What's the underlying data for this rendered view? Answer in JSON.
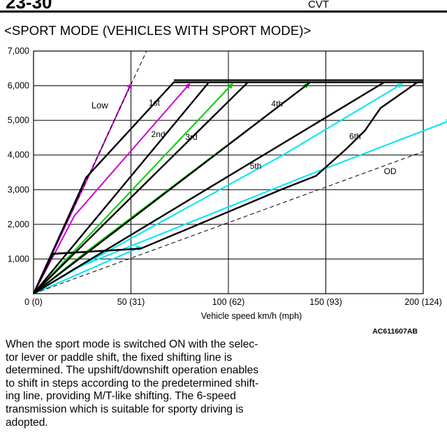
{
  "header": {
    "page_number": "23-30",
    "section": "CVT"
  },
  "heading": "<SPORT MODE (VEHICLES WITH SPORT MODE)>",
  "chart_data": {
    "type": "line",
    "title": "",
    "xlabel": "Vehicle speed  km/h (mph)",
    "ylabel": "",
    "xlim": [
      0,
      200
    ],
    "ylim": [
      0,
      7000
    ],
    "x_ticks": [
      "0 (0)",
      "50 (31)",
      "100 (62)",
      "150 (93)",
      "200 (124)"
    ],
    "y_ticks": [
      "7,000",
      "6,000",
      "5,000",
      "4,000",
      "3,000",
      "2,000",
      "1,000"
    ],
    "grid": true,
    "figure_code": "AC611607AB",
    "annotations": [
      "Low",
      "1st",
      "2nd",
      "3rd",
      "4th",
      "5th",
      "6th",
      "OD"
    ],
    "series": [
      {
        "name": "Low",
        "style": "dashed",
        "color": "#000000",
        "x": [
          0,
          58
        ],
        "y": [
          0,
          7000
        ]
      },
      {
        "name": "OD",
        "style": "dashed",
        "color": "#000000",
        "x": [
          0,
          200
        ],
        "y": [
          0,
          4100
        ]
      },
      {
        "name": "1st",
        "style": "solid",
        "color": "#000000",
        "x": [
          0,
          27,
          72,
          200
        ],
        "y": [
          0,
          3350,
          6100,
          6100
        ]
      },
      {
        "name": "2nd",
        "style": "solid",
        "color": "#000000",
        "x": [
          0,
          90
        ],
        "y": [
          0,
          6100
        ]
      },
      {
        "name": "3rd",
        "style": "solid",
        "color": "#000000",
        "x": [
          0,
          110
        ],
        "y": [
          0,
          6100
        ]
      },
      {
        "name": "4th",
        "style": "solid",
        "color": "#000000",
        "x": [
          0,
          142
        ],
        "y": [
          0,
          6100
        ]
      },
      {
        "name": "5th",
        "style": "solid",
        "color": "#000000",
        "x": [
          0,
          180
        ],
        "y": [
          0,
          6100
        ]
      },
      {
        "name": "6th",
        "style": "solid",
        "color": "#000000",
        "x": [
          0,
          10,
          55,
          127,
          145,
          160,
          170,
          178,
          197,
          200
        ],
        "y": [
          0,
          1150,
          1300,
          3000,
          3400,
          4150,
          4700,
          5350,
          6100,
          6100
        ]
      },
      {
        "name": "low-flat",
        "style": "solid",
        "color": "#000000",
        "x": [
          10,
          55
        ],
        "y": [
          1150,
          1300
        ]
      }
    ],
    "arrows": [
      {
        "color": "#cc00cc",
        "x": [
          0,
          28,
          50
        ],
        "y": [
          0,
          3350,
          6050
        ]
      },
      {
        "color": "#cc00cc",
        "x": [
          0,
          21,
          80
        ],
        "y": [
          0,
          2250,
          6050
        ]
      },
      {
        "color": "#00cc00",
        "x": [
          0,
          28,
          102
        ],
        "y": [
          0,
          1650,
          6050
        ]
      },
      {
        "color": "#00cc00",
        "x": [
          0,
          28,
          141
        ],
        "y": [
          0,
          1250,
          6050
        ]
      },
      {
        "color": "#00e5f0",
        "x": [
          0,
          25,
          128,
          189
        ],
        "y": [
          0,
          820,
          4000,
          6050
        ]
      },
      {
        "color": "#00e5f0",
        "x": [
          0,
          55
        ],
        "y": [
          0,
          1350
        ]
      },
      {
        "color": "#00e5f0",
        "x": [
          20,
          140,
          214
        ],
        "y": [
          700,
          3400,
          5000
        ]
      }
    ]
  },
  "body_lines": [
    "When the sport mode is switched ON with the selec-",
    "tor lever or paddle shift, the fixed shifting line is",
    "determined. The upshift/downshift operation enables",
    "to shift in steps according to the predetermined shift-",
    "ing line, providing M/T-like shifting. The 6-speed",
    "transmission which is suitable for sporty driving is",
    "adopted."
  ]
}
